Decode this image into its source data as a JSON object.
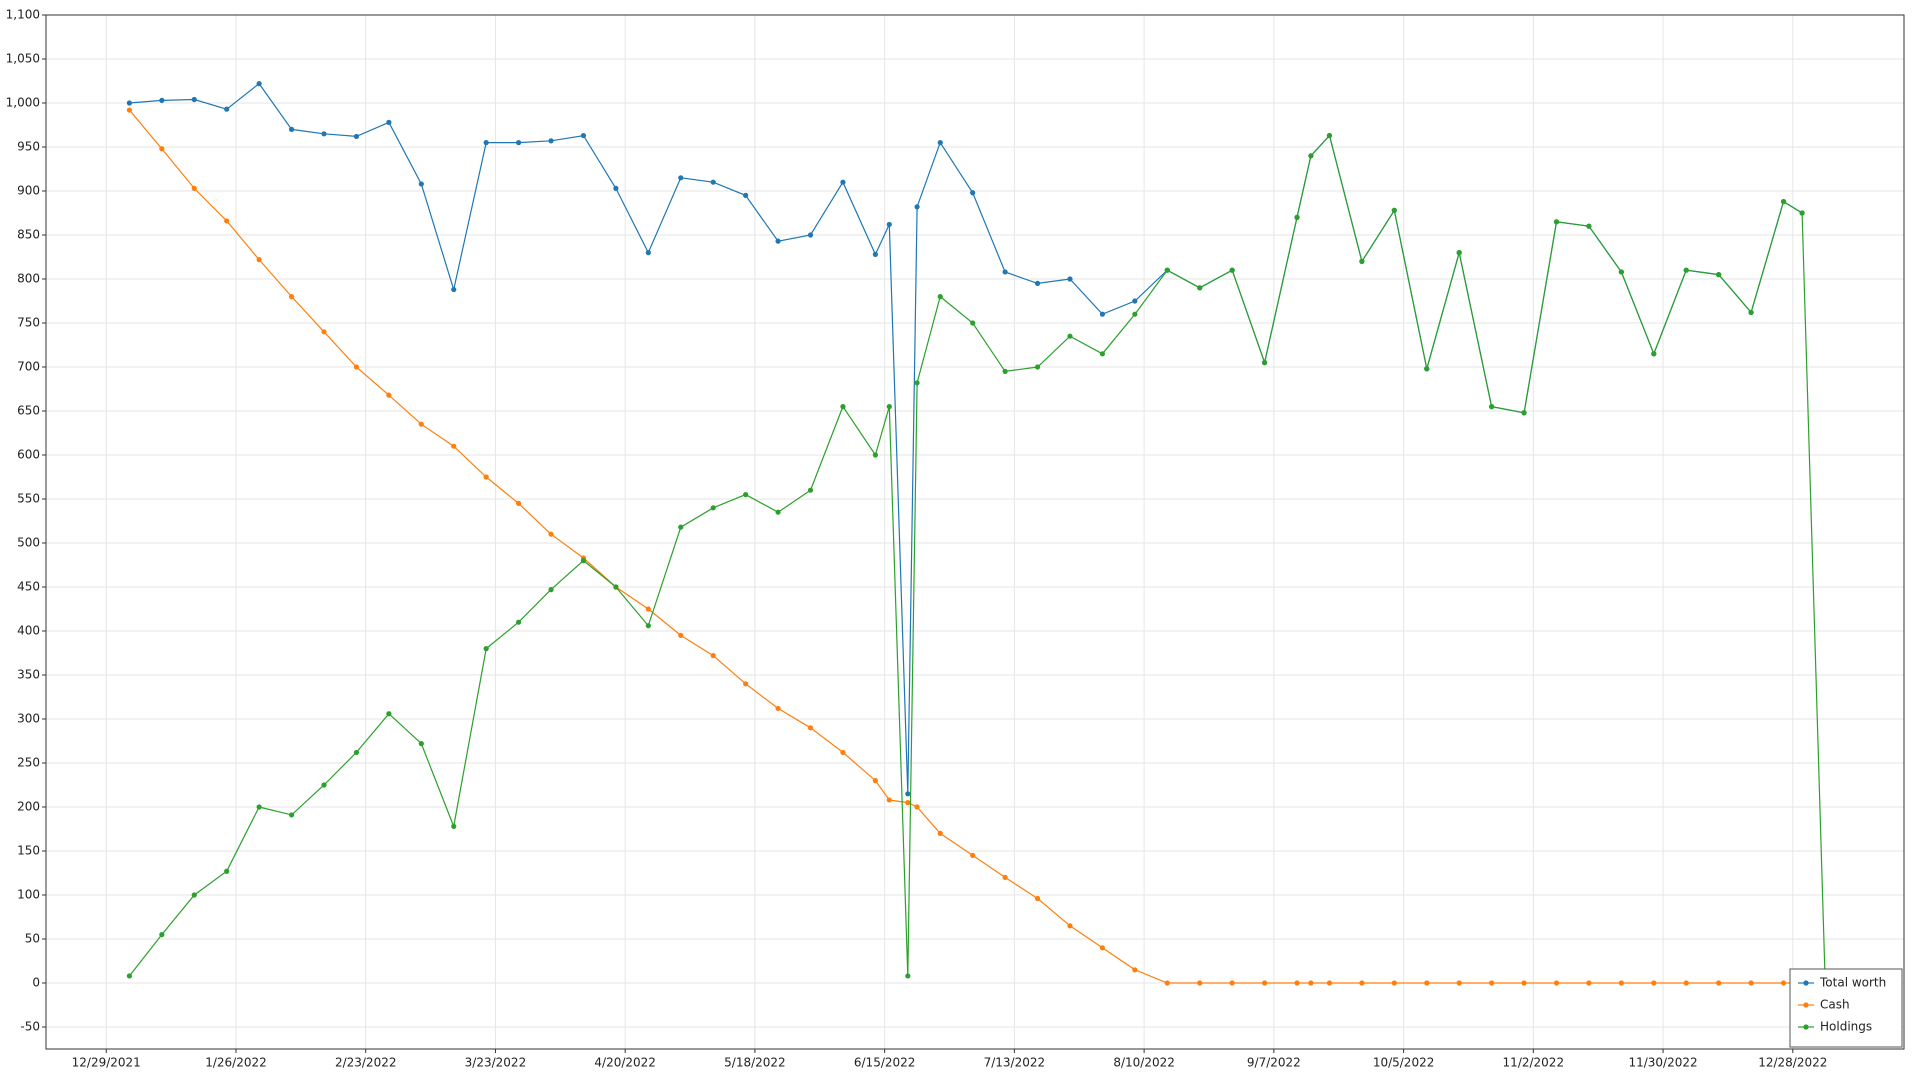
{
  "chart_data": {
    "type": "line",
    "x": [
      "1/3/2022",
      "1/10/2022",
      "1/17/2022",
      "1/24/2022",
      "1/31/2022",
      "2/7/2022",
      "2/14/2022",
      "2/21/2022",
      "2/28/2022",
      "3/7/2022",
      "3/14/2022",
      "3/21/2022",
      "3/28/2022",
      "4/4/2022",
      "4/11/2022",
      "4/18/2022",
      "4/25/2022",
      "5/2/2022",
      "5/9/2022",
      "5/16/2022",
      "5/23/2022",
      "5/30/2022",
      "6/6/2022",
      "6/13/2022",
      "6/16/2022",
      "6/20/2022",
      "6/22/2022",
      "6/27/2022",
      "7/4/2022",
      "7/11/2022",
      "7/18/2022",
      "7/25/2022",
      "8/1/2022",
      "8/8/2022",
      "8/15/2022",
      "8/22/2022",
      "8/29/2022",
      "9/5/2022",
      "9/12/2022",
      "9/15/2022",
      "9/19/2022",
      "9/26/2022",
      "10/3/2022",
      "10/10/2022",
      "10/17/2022",
      "10/24/2022",
      "10/31/2022",
      "11/7/2022",
      "11/14/2022",
      "11/21/2022",
      "11/28/2022",
      "12/5/2022",
      "12/12/2022",
      "12/19/2022",
      "12/26/2022",
      "12/30/2022",
      "1/4/2023"
    ],
    "series": [
      {
        "name": "Total worth",
        "color": "#1f77b4",
        "values": [
          1000,
          1003,
          1004,
          993,
          1022,
          970,
          965,
          962,
          978,
          908,
          788,
          955,
          955,
          957,
          963,
          903,
          830,
          915,
          910,
          895,
          843,
          850,
          910,
          828,
          862,
          215,
          882,
          955,
          898,
          808,
          795,
          800,
          760,
          775,
          810,
          790,
          810,
          705,
          870,
          940,
          963,
          820,
          878,
          698,
          830,
          655,
          648,
          865,
          860,
          808,
          715,
          810,
          805,
          762,
          888,
          875,
          null
        ]
      },
      {
        "name": "Cash",
        "color": "#ff7f0e",
        "values": [
          992,
          948,
          903,
          866,
          822,
          780,
          740,
          700,
          668,
          635,
          610,
          575,
          545,
          510,
          483,
          450,
          425,
          395,
          372,
          340,
          312,
          290,
          262,
          230,
          208,
          205,
          200,
          170,
          145,
          120,
          96,
          65,
          40,
          15,
          0,
          0,
          0,
          0,
          0,
          0,
          0,
          0,
          0,
          0,
          0,
          0,
          0,
          0,
          0,
          0,
          0,
          0,
          0,
          0,
          0,
          0,
          null
        ]
      },
      {
        "name": "Holdings",
        "color": "#2ca02c",
        "values": [
          8,
          55,
          100,
          127,
          200,
          191,
          225,
          262,
          306,
          272,
          178,
          380,
          410,
          447,
          480,
          450,
          406,
          518,
          540,
          555,
          535,
          560,
          655,
          600,
          655,
          8,
          682,
          780,
          750,
          695,
          700,
          735,
          715,
          760,
          810,
          790,
          810,
          705,
          870,
          940,
          963,
          820,
          878,
          698,
          830,
          655,
          648,
          865,
          860,
          808,
          715,
          810,
          805,
          762,
          888,
          875,
          0
        ]
      }
    ],
    "xlim": [
      "12/16/2021",
      "1/21/2023"
    ],
    "xticks": [
      "12/29/2021",
      "1/26/2022",
      "2/23/2022",
      "3/23/2022",
      "4/20/2022",
      "5/18/2022",
      "6/15/2022",
      "7/13/2022",
      "8/10/2022",
      "9/7/2022",
      "10/5/2022",
      "11/2/2022",
      "11/30/2022",
      "12/28/2022"
    ],
    "ylim": [
      -75,
      1100
    ],
    "yticks": [
      -50,
      0,
      50,
      100,
      150,
      200,
      250,
      300,
      350,
      400,
      450,
      500,
      550,
      600,
      650,
      700,
      750,
      800,
      850,
      900,
      950,
      {
        "value": 1000,
        "label": "1,000"
      },
      {
        "value": 1050,
        "label": "1,050"
      },
      {
        "value": 1100,
        "label": "1,100"
      }
    ],
    "grid": true,
    "legend": "bottom-right"
  }
}
